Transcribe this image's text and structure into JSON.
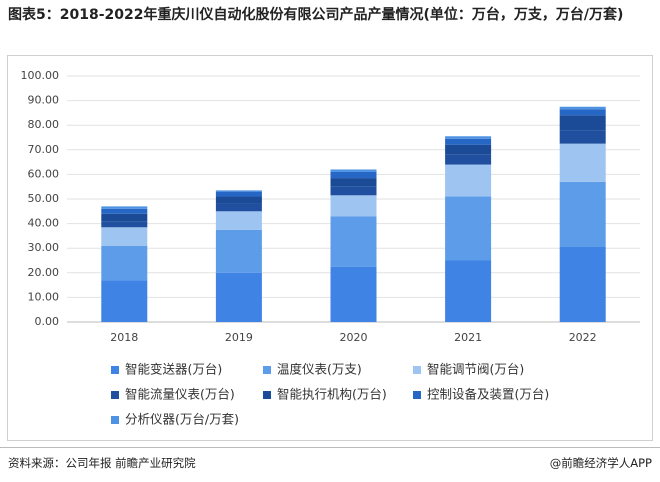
{
  "title": "图表5：2018-2022年重庆川仪自动化股份有限公司产品产量情况(单位：万台，万支，万台/万套)",
  "chart_data": {
    "type": "stacked_bar",
    "categories": [
      "2018",
      "2019",
      "2020",
      "2021",
      "2022"
    ],
    "series": [
      {
        "name": "智能变送器(万台)",
        "color": "#3f83e4",
        "values": [
          17,
          20,
          22.5,
          25,
          30.5
        ]
      },
      {
        "name": "温度仪表(万支)",
        "color": "#5c9ce9",
        "values": [
          14,
          17.5,
          20.5,
          26,
          26.5
        ]
      },
      {
        "name": "智能调节阀(万台)",
        "color": "#9ec5f1",
        "values": [
          7.5,
          7.5,
          8.5,
          13,
          15.5
        ]
      },
      {
        "name": "智能流量仪表(万台)",
        "color": "#1f4f9e",
        "values": [
          2.5,
          3,
          3.5,
          4,
          5.5
        ]
      },
      {
        "name": "智能执行机构(万台)",
        "color": "#1b4a96",
        "values": [
          3,
          3,
          3.5,
          4,
          6
        ]
      },
      {
        "name": "控制设备及装置(万台)",
        "color": "#2666c4",
        "values": [
          2,
          2,
          2.5,
          2.5,
          2.5
        ]
      },
      {
        "name": "分析仪器(万台/万套)",
        "color": "#4d92e3",
        "values": [
          1,
          0.5,
          1,
          1,
          1
        ]
      }
    ],
    "ylim": [
      0,
      100
    ],
    "yticks": [
      {
        "value": 0,
        "label": "0.00"
      },
      {
        "value": 10,
        "label": "10.00"
      },
      {
        "value": 20,
        "label": "20.00"
      },
      {
        "value": 30,
        "label": "30.00"
      },
      {
        "value": 40,
        "label": "40.00"
      },
      {
        "value": 50,
        "label": "50.00"
      },
      {
        "value": 60,
        "label": "60.00"
      },
      {
        "value": 70,
        "label": "70.00"
      },
      {
        "value": 80,
        "label": "80.00"
      },
      {
        "value": 90,
        "label": "90.00"
      },
      {
        "value": 100,
        "label": "100.00"
      }
    ],
    "grid": true
  },
  "footer": {
    "source": "资料来源：公司年报 前瞻产业研究院",
    "credit": "@前瞻经济学人APP"
  }
}
